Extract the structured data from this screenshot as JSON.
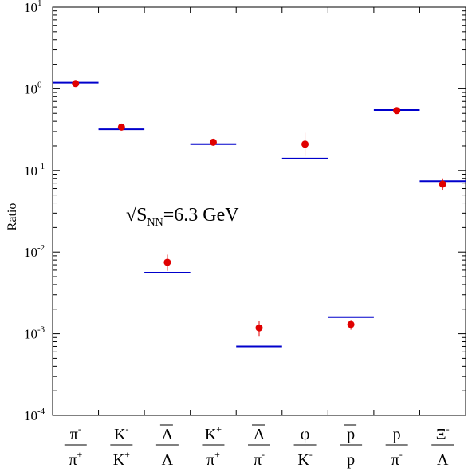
{
  "chart_data": {
    "type": "scatter",
    "ylabel": "Ratio",
    "yscale": "log",
    "ylim": [
      0.0001,
      10
    ],
    "yticks": [
      {
        "base": "10",
        "exp": "-4",
        "value": 0.0001
      },
      {
        "base": "10",
        "exp": "-3",
        "value": 0.001
      },
      {
        "base": "10",
        "exp": "-2",
        "value": 0.01
      },
      {
        "base": "10",
        "exp": "-1",
        "value": 0.1
      },
      {
        "base": "10",
        "exp": "0",
        "value": 1
      },
      {
        "base": "10",
        "exp": "1",
        "value": 10
      }
    ],
    "annotation": {
      "prefix": "√S",
      "subscript": "NN",
      "suffix": "=6.3 GeV"
    },
    "categories": [
      {
        "num": "π",
        "num_sup": "-",
        "num_bar": false,
        "den": "π",
        "den_sup": "+",
        "den_bar": false
      },
      {
        "num": "K",
        "num_sup": "-",
        "num_bar": false,
        "den": "K",
        "den_sup": "+",
        "den_bar": false
      },
      {
        "num": "Λ",
        "num_sup": "",
        "num_bar": true,
        "den": "Λ",
        "den_sup": "",
        "den_bar": false
      },
      {
        "num": "K",
        "num_sup": "+",
        "num_bar": false,
        "den": "π",
        "den_sup": "+",
        "den_bar": false
      },
      {
        "num": "Λ",
        "num_sup": "",
        "num_bar": true,
        "den": "π",
        "den_sup": "-",
        "den_bar": false
      },
      {
        "num": "φ",
        "num_sup": "",
        "num_bar": false,
        "den": "K",
        "den_sup": "-",
        "den_bar": false
      },
      {
        "num": "p",
        "num_sup": "",
        "num_bar": true,
        "den": "p",
        "den_sup": "",
        "den_bar": false
      },
      {
        "num": "p",
        "num_sup": "",
        "num_bar": false,
        "den": "π",
        "den_sup": "-",
        "den_bar": false
      },
      {
        "num": "Ξ",
        "num_sup": "-",
        "num_bar": false,
        "den": "Λ",
        "den_sup": "",
        "den_bar": false
      }
    ],
    "series": [
      {
        "type": "model-lines",
        "color": "#0000cc",
        "values": [
          1.19,
          0.32,
          0.0056,
          0.21,
          0.0007,
          0.14,
          0.0016,
          0.55,
          0.074
        ]
      },
      {
        "type": "data-points",
        "color": "#e00000",
        "values": [
          1.16,
          0.34,
          0.0075,
          0.222,
          0.00118,
          0.21,
          0.0013,
          0.54,
          0.068
        ],
        "err_low": [
          1.11,
          0.325,
          0.0059,
          0.212,
          0.00092,
          0.15,
          0.00112,
          0.52,
          0.058
        ],
        "err_high": [
          1.21,
          0.355,
          0.0093,
          0.232,
          0.00145,
          0.29,
          0.00148,
          0.56,
          0.08
        ]
      }
    ]
  }
}
